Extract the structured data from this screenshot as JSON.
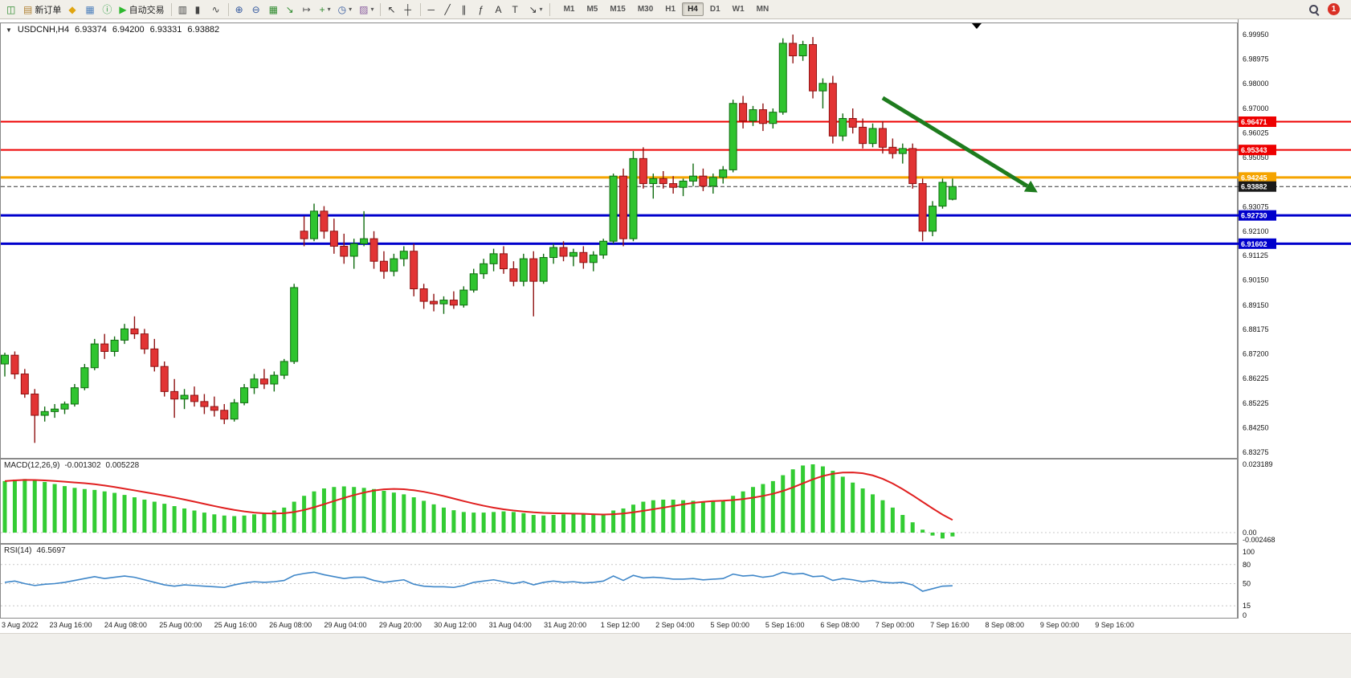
{
  "toolbar": {
    "items": [
      {
        "name": "new-chart-button",
        "icon": "new-chart-icon",
        "glyph": "◫",
        "color": "#2e8b2e"
      },
      {
        "name": "new-order-button",
        "icon": "new-order-icon",
        "glyph": "▤",
        "color": "#b08030",
        "label": "新订单"
      },
      {
        "name": "market-watch-button",
        "icon": "market-watch-icon",
        "glyph": "◆",
        "color": "#e0a510"
      },
      {
        "name": "data-window-button",
        "icon": "data-window-icon",
        "glyph": "▦",
        "color": "#4a7ebb"
      },
      {
        "name": "navigator-button",
        "icon": "info-circle-icon",
        "glyph": "ⓘ",
        "color": "#2f9e44"
      },
      {
        "name": "auto-trading-button",
        "icon": "play-icon",
        "glyph": "▶",
        "color": "#2eb82e",
        "label": "自动交易"
      },
      {
        "type": "sep"
      },
      {
        "name": "bar-chart-button",
        "icon": "bar-chart-icon",
        "glyph": "▥",
        "color": "#444444"
      },
      {
        "name": "candlestick-chart-button",
        "icon": "candlestick-chart-icon",
        "glyph": "▮",
        "color": "#444444"
      },
      {
        "name": "line-chart-button",
        "icon": "line-chart-icon",
        "glyph": "∿",
        "color": "#444444"
      },
      {
        "type": "sep"
      },
      {
        "name": "zoom-in-button",
        "icon": "zoom-in-icon",
        "glyph": "⊕",
        "color": "#33589e"
      },
      {
        "name": "zoom-out-button",
        "icon": "zoom-out-icon",
        "glyph": "⊖",
        "color": "#33589e"
      },
      {
        "name": "tile-windows-button",
        "icon": "tile-windows-icon",
        "glyph": "▦",
        "color": "#2e8b2e"
      },
      {
        "name": "auto-scroll-button",
        "icon": "auto-scroll-icon",
        "glyph": "↘",
        "color": "#2e8b2e"
      },
      {
        "name": "chart-shift-button",
        "icon": "chart-shift-icon",
        "glyph": "↦",
        "color": "#555555"
      },
      {
        "name": "indicators-button",
        "icon": "indicators-icon",
        "glyph": "+",
        "color": "#2e8b2e",
        "caret": true
      },
      {
        "name": "periods-button",
        "icon": "clock-icon",
        "glyph": "◷",
        "color": "#33589e",
        "caret": true
      },
      {
        "name": "templates-button",
        "icon": "template-icon",
        "glyph": "▨",
        "color": "#8b5fa0",
        "caret": true
      },
      {
        "type": "sep"
      },
      {
        "name": "cursor-button",
        "icon": "cursor-icon",
        "glyph": "↖",
        "color": "#333333"
      },
      {
        "name": "crosshair-button",
        "icon": "crosshair-icon",
        "glyph": "┼",
        "color": "#333333"
      },
      {
        "type": "sep"
      },
      {
        "name": "horizontal-line-button",
        "icon": "horizontal-line-icon",
        "glyph": "─",
        "color": "#333333"
      },
      {
        "name": "trendline-button",
        "icon": "trendline-icon",
        "glyph": "╱",
        "color": "#333333"
      },
      {
        "name": "channel-button",
        "icon": "channel-icon",
        "glyph": "∥",
        "color": "#333333"
      },
      {
        "name": "fibonacci-button",
        "icon": "fibonacci-icon",
        "glyph": "ƒ",
        "color": "#333333"
      },
      {
        "name": "text-button",
        "icon": "text-icon",
        "glyph": "A",
        "color": "#333333"
      },
      {
        "name": "text-label-button",
        "icon": "label-icon",
        "glyph": "T",
        "color": "#333333"
      },
      {
        "name": "arrows-button",
        "icon": "arrow-objects-icon",
        "glyph": "↘",
        "color": "#333333",
        "caret": true
      }
    ],
    "timeframes": [
      "M1",
      "M5",
      "M15",
      "M30",
      "H1",
      "H4",
      "D1",
      "W1",
      "MN"
    ],
    "active_timeframe": "H4",
    "notification_count": "1"
  },
  "chart_header": {
    "symbol": "USDCNH,H4",
    "open": "6.93374",
    "high": "6.94200",
    "low": "6.93331",
    "close": "6.93882"
  },
  "price_axis": {
    "ticks": [
      "6.99950",
      "6.98975",
      "6.98000",
      "6.97000",
      "6.96025",
      "6.95050",
      "6.94075",
      "6.93075",
      "6.92100",
      "6.91125",
      "6.90150",
      "6.89150",
      "6.88175",
      "6.87200",
      "6.86225",
      "6.85225",
      "6.84250",
      "6.83275"
    ],
    "tags": [
      {
        "value": "6.96471",
        "color": "#ee0000"
      },
      {
        "value": "6.95343",
        "color": "#ee0000"
      },
      {
        "value": "6.94245",
        "color": "#f5a400"
      },
      {
        "value": "6.93882",
        "color": "#1a1a1a"
      },
      {
        "value": "6.92730",
        "color": "#0000cc"
      },
      {
        "value": "6.91602",
        "color": "#0000cc"
      }
    ]
  },
  "chart_data": {
    "type": "candlestick",
    "symbol": "USDCNH",
    "timeframe": "H4",
    "price_range": {
      "top": 6.9995,
      "bottom": 6.83275
    },
    "colors": {
      "up": "#2fc42f",
      "up_border": "#0f6b0f",
      "down": "#e23434",
      "down_border": "#8f1212",
      "current_line": "#333333"
    },
    "hlines": [
      {
        "price": 6.96471,
        "color": "#ee0000",
        "width": 2
      },
      {
        "price": 6.95343,
        "color": "#ee0000",
        "width": 2
      },
      {
        "price": 6.94245,
        "color": "#f5a400",
        "width": 3
      },
      {
        "price": 6.9273,
        "color": "#0000cc",
        "width": 3
      },
      {
        "price": 6.91602,
        "color": "#0000cc",
        "width": 3
      }
    ],
    "current_price": 6.93882,
    "trend_arrow": {
      "from": {
        "bar": 88,
        "price": 6.9742
      },
      "to": {
        "bar": 102.5,
        "price": 6.939
      },
      "color": "#1e7c1e"
    },
    "candles": [
      [
        6.868,
        6.8725,
        6.863,
        6.8715
      ],
      [
        6.8715,
        6.873,
        6.862,
        6.864
      ],
      [
        6.864,
        6.866,
        6.8545,
        6.856
      ],
      [
        6.856,
        6.858,
        6.8365,
        6.8475
      ],
      [
        6.8475,
        6.851,
        6.845,
        6.849
      ],
      [
        6.849,
        6.852,
        6.8465,
        6.85
      ],
      [
        6.85,
        6.853,
        6.848,
        6.852
      ],
      [
        6.852,
        6.86,
        6.851,
        6.8585
      ],
      [
        6.8585,
        6.868,
        6.8575,
        6.8665
      ],
      [
        6.8665,
        6.878,
        6.8655,
        6.876
      ],
      [
        6.876,
        6.88,
        6.87,
        6.873
      ],
      [
        6.873,
        6.879,
        6.871,
        6.8775
      ],
      [
        6.8775,
        6.884,
        6.876,
        6.882
      ],
      [
        6.882,
        6.887,
        6.878,
        6.88
      ],
      [
        6.88,
        6.882,
        6.872,
        6.874
      ],
      [
        6.874,
        6.878,
        6.865,
        6.867
      ],
      [
        6.867,
        6.869,
        6.855,
        6.857
      ],
      [
        6.857,
        6.862,
        6.8465,
        6.854
      ],
      [
        6.854,
        6.858,
        6.85,
        6.8555
      ],
      [
        6.8555,
        6.859,
        6.851,
        6.853
      ],
      [
        6.853,
        6.856,
        6.848,
        6.851
      ],
      [
        6.851,
        6.855,
        6.847,
        6.8495
      ],
      [
        6.8495,
        6.852,
        6.844,
        6.846
      ],
      [
        6.846,
        6.854,
        6.845,
        6.8525
      ],
      [
        6.8525,
        6.86,
        6.8515,
        6.8585
      ],
      [
        6.8585,
        6.864,
        6.856,
        6.862
      ],
      [
        6.862,
        6.866,
        6.858,
        6.86
      ],
      [
        6.86,
        6.865,
        6.857,
        6.8635
      ],
      [
        6.8635,
        6.87,
        6.862,
        6.869
      ],
      [
        6.869,
        6.9,
        6.868,
        6.8985
      ],
      [
        6.921,
        6.927,
        6.915,
        6.918
      ],
      [
        6.918,
        6.932,
        6.917,
        6.929
      ],
      [
        6.929,
        6.931,
        6.918,
        6.921
      ],
      [
        6.921,
        6.926,
        6.912,
        6.915
      ],
      [
        6.915,
        6.92,
        6.908,
        6.911
      ],
      [
        6.911,
        6.918,
        6.906,
        6.916
      ],
      [
        6.916,
        6.929,
        6.915,
        6.918
      ],
      [
        6.918,
        6.921,
        6.906,
        6.909
      ],
      [
        6.909,
        6.913,
        6.902,
        6.905
      ],
      [
        6.905,
        6.912,
        6.903,
        6.91
      ],
      [
        6.91,
        6.915,
        6.907,
        6.913
      ],
      [
        6.913,
        6.916,
        6.895,
        6.898
      ],
      [
        6.898,
        6.9,
        6.89,
        6.893
      ],
      [
        6.893,
        6.896,
        6.889,
        6.892
      ],
      [
        6.892,
        6.895,
        6.888,
        6.8935
      ],
      [
        6.8935,
        6.897,
        6.89,
        6.8915
      ],
      [
        6.8915,
        6.899,
        6.8905,
        6.8975
      ],
      [
        6.8975,
        6.906,
        6.8965,
        6.904
      ],
      [
        6.904,
        6.91,
        6.902,
        6.908
      ],
      [
        6.908,
        6.914,
        6.905,
        6.912
      ],
      [
        6.912,
        6.915,
        6.904,
        6.906
      ],
      [
        6.906,
        6.909,
        6.899,
        6.901
      ],
      [
        6.901,
        6.912,
        6.899,
        6.91
      ],
      [
        6.91,
        6.913,
        6.887,
        6.901
      ],
      [
        6.901,
        6.912,
        6.9,
        6.9105
      ],
      [
        6.9105,
        6.916,
        6.908,
        6.9145
      ],
      [
        6.9145,
        6.917,
        6.909,
        6.911
      ],
      [
        6.911,
        6.914,
        6.907,
        6.9125
      ],
      [
        6.9125,
        6.915,
        6.906,
        6.9085
      ],
      [
        6.9085,
        6.913,
        6.905,
        6.9115
      ],
      [
        6.9115,
        6.918,
        6.91,
        6.917
      ],
      [
        6.917,
        6.944,
        6.916,
        6.943
      ],
      [
        6.943,
        6.946,
        6.915,
        6.918
      ],
      [
        6.918,
        6.953,
        6.917,
        6.95
      ],
      [
        6.95,
        6.9545,
        6.938,
        6.94
      ],
      [
        6.94,
        6.944,
        6.934,
        6.942
      ],
      [
        6.942,
        6.945,
        6.938,
        6.94
      ],
      [
        6.94,
        6.943,
        6.936,
        6.9385
      ],
      [
        6.9385,
        6.942,
        6.935,
        6.941
      ],
      [
        6.941,
        6.948,
        6.939,
        6.943
      ],
      [
        6.943,
        6.946,
        6.937,
        6.939
      ],
      [
        6.939,
        6.944,
        6.936,
        6.9425
      ],
      [
        6.9425,
        6.947,
        6.94,
        6.9455
      ],
      [
        6.9455,
        6.9735,
        6.9445,
        6.972
      ],
      [
        6.972,
        6.975,
        6.962,
        6.965
      ],
      [
        6.965,
        6.971,
        6.963,
        6.9695
      ],
      [
        6.9695,
        6.972,
        6.961,
        6.964
      ],
      [
        6.964,
        6.97,
        6.962,
        6.9685
      ],
      [
        6.9685,
        6.998,
        6.9675,
        6.996
      ],
      [
        6.996,
        6.9995,
        6.988,
        6.991
      ],
      [
        6.991,
        6.997,
        6.989,
        6.9955
      ],
      [
        6.9955,
        6.9985,
        6.974,
        6.977
      ],
      [
        6.977,
        6.982,
        6.97,
        6.98
      ],
      [
        6.98,
        6.983,
        6.956,
        6.959
      ],
      [
        6.959,
        6.968,
        6.957,
        6.966
      ],
      [
        6.966,
        6.97,
        6.96,
        6.9625
      ],
      [
        6.9625,
        6.966,
        6.954,
        6.956
      ],
      [
        6.956,
        6.964,
        6.9545,
        6.962
      ],
      [
        6.962,
        6.965,
        6.952,
        6.9545
      ],
      [
        6.9545,
        6.958,
        6.95,
        6.952
      ],
      [
        6.952,
        6.956,
        6.948,
        6.954
      ],
      [
        6.954,
        6.956,
        6.938,
        6.94
      ],
      [
        6.94,
        6.942,
        6.917,
        6.921
      ],
      [
        6.921,
        6.933,
        6.919,
        6.931
      ],
      [
        6.931,
        6.942,
        6.93,
        6.9405
      ],
      [
        6.93374,
        6.942,
        6.93331,
        6.93882
      ]
    ],
    "time_labels": [
      "3 Aug 2022",
      "23 Aug 16:00",
      "24 Aug 08:00",
      "25 Aug 00:00",
      "25 Aug 16:00",
      "26 Aug 08:00",
      "29 Aug 04:00",
      "29 Aug 20:00",
      "30 Aug 12:00",
      "31 Aug 04:00",
      "31 Aug 20:00",
      "1 Sep 12:00",
      "2 Sep 04:00",
      "5 Sep 00:00",
      "5 Sep 16:00",
      "6 Sep 08:00",
      "7 Sep 00:00",
      "7 Sep 16:00",
      "8 Sep 08:00",
      "9 Sep 00:00",
      "9 Sep 16:00"
    ],
    "macd": {
      "label": "MACD(12,26,9)",
      "main_value": "-0.001302",
      "signal_value": "0.005228",
      "axis": [
        "0.023189",
        "0.00",
        "-0.002468"
      ],
      "color_hist": "#33cc33",
      "color_signal": "#e02020",
      "values": [
        0.0175,
        0.018,
        0.0182,
        0.0178,
        0.0172,
        0.0165,
        0.0158,
        0.0152,
        0.0148,
        0.0145,
        0.014,
        0.0135,
        0.0128,
        0.012,
        0.0112,
        0.0105,
        0.0098,
        0.009,
        0.0082,
        0.0075,
        0.0068,
        0.0062,
        0.0058,
        0.0056,
        0.0058,
        0.0062,
        0.0068,
        0.0075,
        0.0085,
        0.0105,
        0.0125,
        0.014,
        0.015,
        0.0155,
        0.0157,
        0.0155,
        0.0152,
        0.0148,
        0.0142,
        0.0136,
        0.013,
        0.012,
        0.0108,
        0.0096,
        0.0085,
        0.0076,
        0.007,
        0.0068,
        0.0068,
        0.007,
        0.0072,
        0.007,
        0.0066,
        0.006,
        0.0058,
        0.006,
        0.0062,
        0.0063,
        0.0062,
        0.006,
        0.0062,
        0.0075,
        0.0082,
        0.0095,
        0.0105,
        0.011,
        0.0112,
        0.0112,
        0.011,
        0.0108,
        0.0106,
        0.0105,
        0.0108,
        0.0125,
        0.014,
        0.0155,
        0.0165,
        0.0175,
        0.0195,
        0.0215,
        0.0228,
        0.0232,
        0.0225,
        0.021,
        0.019,
        0.017,
        0.015,
        0.013,
        0.011,
        0.0085,
        0.006,
        0.0035,
        0.001,
        -0.001,
        -0.002,
        -0.0013
      ]
    },
    "rsi": {
      "label": "RSI(14)",
      "value": "46.5697",
      "axis": [
        "100",
        "80",
        "50",
        "15",
        "0"
      ],
      "levels": [
        80,
        50,
        15
      ],
      "color_line": "#3e86c8",
      "values": [
        52,
        54,
        50,
        47,
        49,
        50,
        52,
        55,
        58,
        61,
        58,
        60,
        62,
        60,
        56,
        52,
        48,
        46,
        48,
        47,
        46,
        45,
        44,
        48,
        51,
        53,
        52,
        53,
        55,
        63,
        66,
        68,
        64,
        61,
        58,
        60,
        60,
        55,
        52,
        54,
        56,
        49,
        46,
        45,
        45,
        44,
        47,
        52,
        54,
        56,
        53,
        50,
        53,
        48,
        52,
        54,
        52,
        53,
        51,
        52,
        54,
        62,
        55,
        63,
        59,
        60,
        59,
        57,
        57,
        58,
        56,
        57,
        58,
        65,
        62,
        63,
        60,
        62,
        68,
        65,
        66,
        61,
        62,
        55,
        58,
        56,
        53,
        55,
        52,
        51,
        52,
        48,
        38,
        42,
        46,
        46.57
      ]
    }
  }
}
